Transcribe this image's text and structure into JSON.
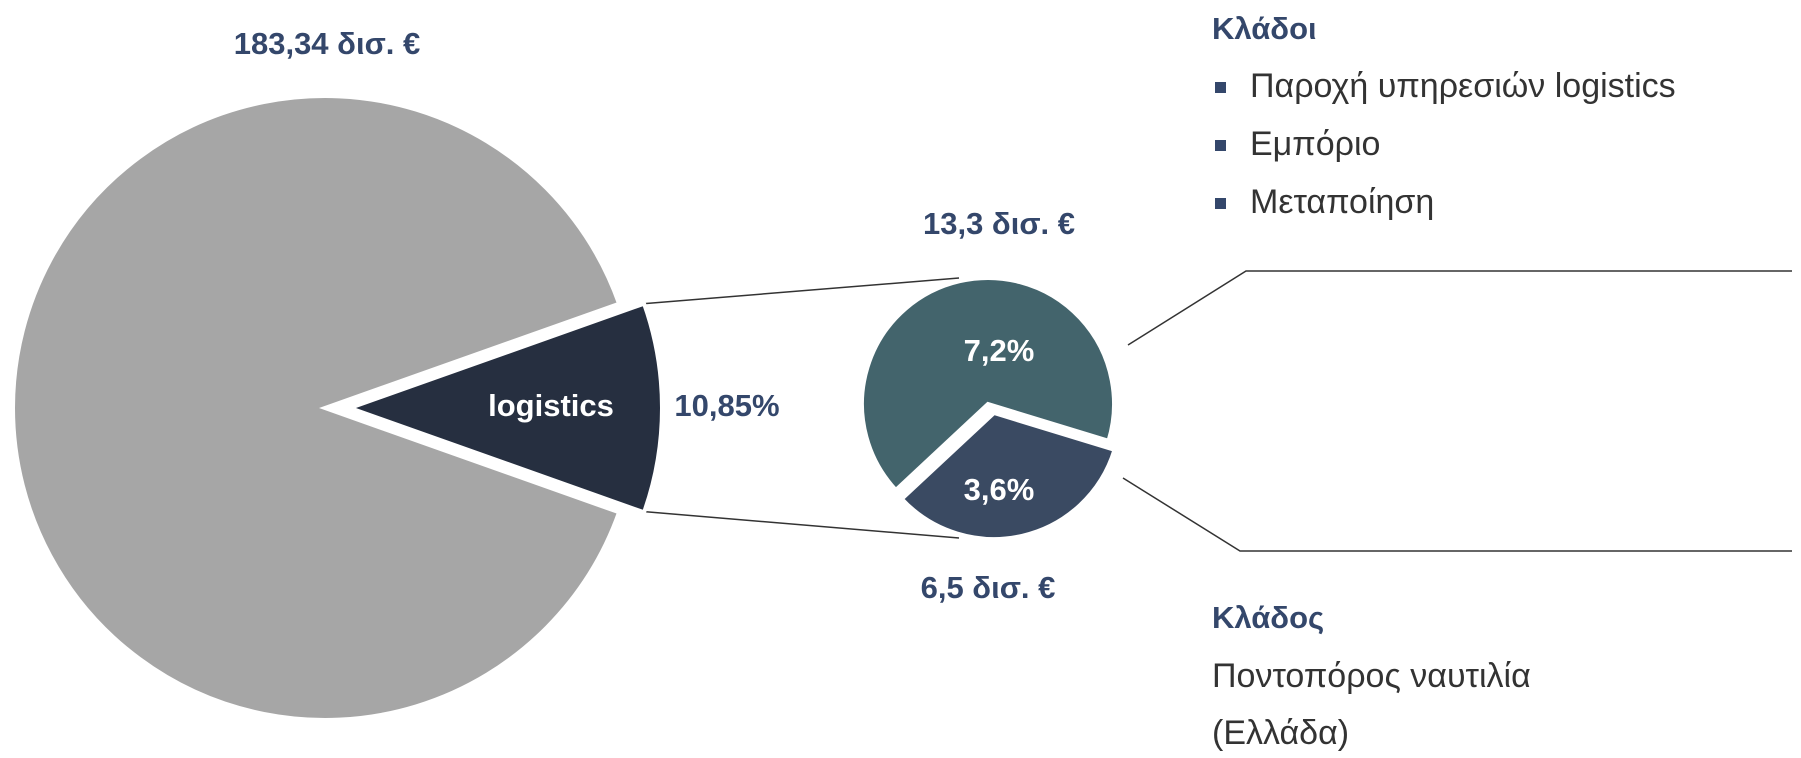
{
  "chart_data": {
    "type": "pie-of-pie",
    "total_label": "183,34 δισ. €",
    "main": {
      "categories": [
        null,
        "logistics"
      ],
      "values": [
        89.15,
        10.85
      ],
      "value_labels": [
        null,
        "10,85%"
      ],
      "colors": [
        "#a6a6a6",
        "#262f40"
      ]
    },
    "detail": {
      "values": [
        7.2,
        3.6
      ],
      "value_labels": [
        "7,2%",
        "3,6%"
      ],
      "amount_labels": [
        "13,3 δισ. €",
        "6,5 δισ. €"
      ],
      "colors": [
        "#43646c",
        "#3a4a62"
      ]
    },
    "legends": [
      {
        "title": "Κλάδοι",
        "items": [
          "Παροχή υπηρεσιών logistics",
          "Εμπόριο",
          "Μεταποίηση"
        ]
      },
      {
        "title": "Κλάδος",
        "lines": [
          "Ποντοπόρος ναυτιλία",
          "(Ελλάδα)"
        ]
      }
    ]
  }
}
